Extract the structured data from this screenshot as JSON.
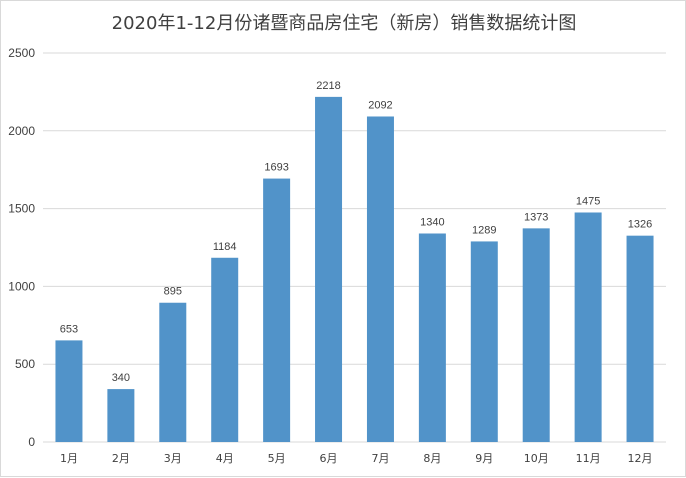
{
  "chart_data": {
    "type": "bar",
    "title": "2020年1-12月份诸暨商品房住宅（新房）销售数据统计图",
    "xlabel": "",
    "ylabel": "",
    "categories": [
      "1月",
      "2月",
      "3月",
      "4月",
      "5月",
      "6月",
      "7月",
      "8月",
      "9月",
      "10月",
      "11月",
      "12月"
    ],
    "values": [
      653,
      340,
      895,
      1184,
      1693,
      2218,
      2092,
      1340,
      1289,
      1373,
      1475,
      1326
    ],
    "ylim": [
      0,
      2500
    ],
    "yticks": [
      0,
      500,
      1000,
      1500,
      2000,
      2500
    ],
    "grid": true,
    "legend": "none",
    "bar_color": "#5193c9",
    "grid_color": "#d9d9d9"
  }
}
